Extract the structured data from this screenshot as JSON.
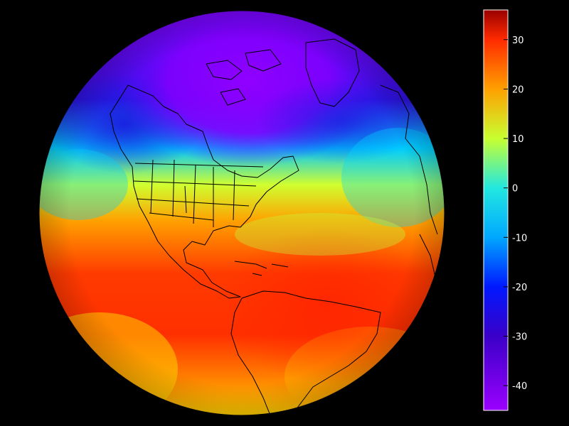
{
  "map": {
    "projection": "orthographic",
    "field": "temperature",
    "background": "#000000",
    "outline_color": "#000000"
  },
  "colorbar": {
    "min": -45,
    "max": 36,
    "ticks": [
      30,
      20,
      10,
      0,
      -10,
      -20,
      -30,
      -40
    ],
    "tick_labels": [
      "30",
      "20",
      "10",
      "0",
      "-10",
      "-20",
      "-30",
      "-40"
    ],
    "colors": {
      "min": "#9b00ff",
      "c_minus30": "#3a00c8",
      "c_minus20": "#0018ff",
      "c_minus10": "#00a8ff",
      "c_zero": "#22e8e0",
      "c_ten": "#c8ff30",
      "c_twenty": "#ffa000",
      "c_thirty": "#ff2a00",
      "max": "#9a0000"
    }
  }
}
